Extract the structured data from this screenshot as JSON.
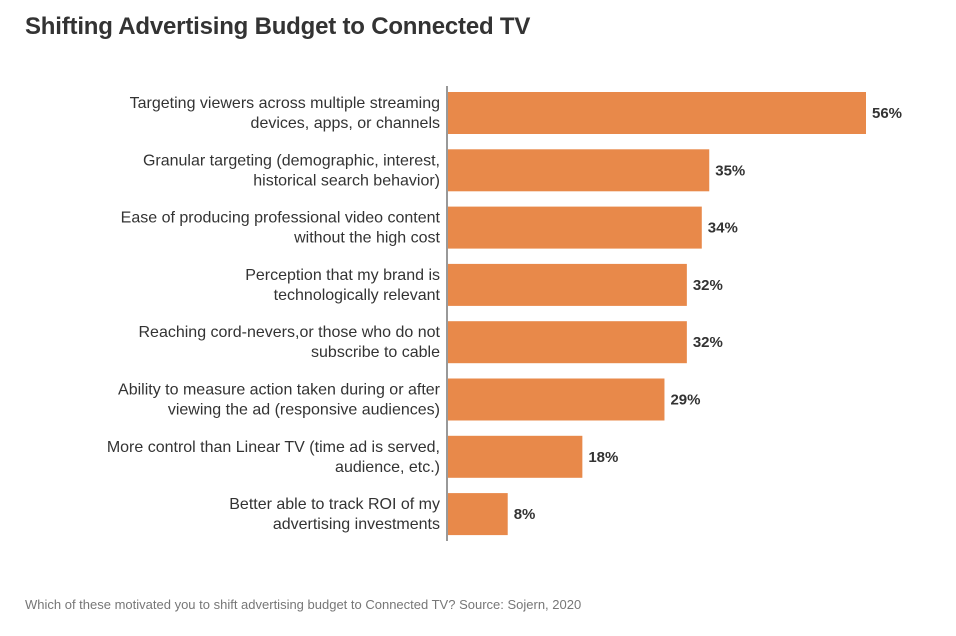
{
  "title": "Shifting Advertising Budget to Connected TV",
  "footnote": "Which of these motivated you to shift advertising budget to Connected TV? Source: Sojern, 2020",
  "bar_color": "#E8894A",
  "chart_data": {
    "type": "bar",
    "orientation": "horizontal",
    "title": "Shifting Advertising Budget to Connected TV",
    "xlim": [
      0,
      56
    ],
    "grid": false,
    "legend": "none",
    "categories": [
      [
        "Targeting viewers across multiple streaming",
        "devices, apps, or channels"
      ],
      [
        "Granular targeting (demographic, interest,",
        "historical search behavior)"
      ],
      [
        "Ease of producing professional video content",
        "without the high cost"
      ],
      [
        "Perception that my brand is",
        "technologically relevant"
      ],
      [
        "Reaching cord-nevers,or those who do not",
        "subscribe to cable"
      ],
      [
        "Ability to measure action taken during or after",
        "viewing the ad (responsive audiences)"
      ],
      [
        "More control than Linear TV (time ad is served,",
        "audience, etc.)"
      ],
      [
        "Better able to track ROI of my",
        "advertising investments"
      ]
    ],
    "values": [
      56,
      35,
      34,
      32,
      32,
      29,
      18,
      8
    ],
    "value_labels": [
      "56%",
      "35%",
      "34%",
      "32%",
      "32%",
      "29%",
      "18%",
      "8%"
    ]
  }
}
